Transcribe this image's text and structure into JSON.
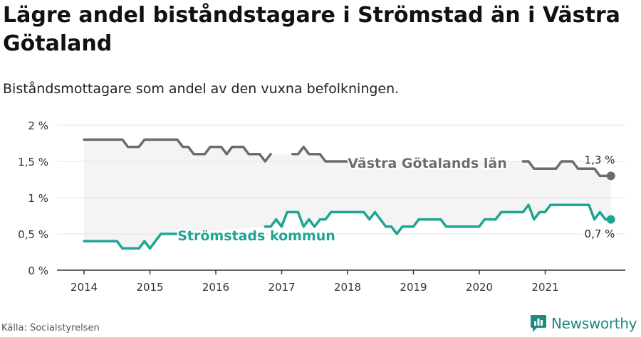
{
  "title": "Lägre andel biståndstagare i Strömstad än i Västra Götaland",
  "subtitle": "Biståndsmottagare som andel av den vuxna befolkningen.",
  "source": "Källa: Socialstyrelsen",
  "brand": "Newsworthy",
  "colors": {
    "vg": "#6b6b70",
    "strom": "#1ea593",
    "band": "#f4f4f5",
    "grid": "#e4e4e4",
    "axis": "#333333",
    "brand": "#1b8a82"
  },
  "chart_data": {
    "type": "line",
    "ylim": [
      0,
      2
    ],
    "y_ticks": [
      0,
      0.5,
      1,
      1.5,
      2
    ],
    "y_tick_labels": [
      "0 %",
      "0,5 %",
      "1 %",
      "1,5 %",
      "2 %"
    ],
    "x_ticks": [
      2014,
      2015,
      2016,
      2017,
      2018,
      2019,
      2020,
      2021
    ],
    "x_tick_labels": [
      "2014",
      "2015",
      "2016",
      "2017",
      "2018",
      "2019",
      "2020",
      "2021"
    ],
    "start": 2014.0,
    "step": 0.0833,
    "series": [
      {
        "name": "Västra Götalands län",
        "key": "vg",
        "end_label": "1,3 %",
        "values": [
          1.8,
          1.8,
          1.8,
          1.8,
          1.8,
          1.8,
          1.8,
          1.8,
          1.7,
          1.7,
          1.7,
          1.8,
          1.8,
          1.8,
          1.8,
          1.8,
          1.8,
          1.8,
          1.7,
          1.7,
          1.6,
          1.6,
          1.6,
          1.7,
          1.7,
          1.7,
          1.6,
          1.7,
          1.7,
          1.7,
          1.6,
          1.6,
          1.6,
          1.5,
          1.6,
          null,
          null,
          null,
          1.6,
          1.6,
          1.7,
          1.6,
          1.6,
          1.6,
          1.5,
          1.5,
          1.5,
          1.5,
          1.5,
          1.5,
          1.5,
          null,
          null,
          null,
          null,
          null,
          null,
          null,
          null,
          null,
          null,
          null,
          null,
          null,
          null,
          null,
          null,
          null,
          null,
          null,
          null,
          null,
          null,
          null,
          null,
          null,
          null,
          null,
          null,
          null,
          1.5,
          1.5,
          1.4,
          1.4,
          1.4,
          1.4,
          1.4,
          1.5,
          1.5,
          1.5,
          1.4,
          1.4,
          1.4,
          1.4,
          1.3,
          1.3,
          1.3
        ]
      },
      {
        "name": "Strömstads kommun",
        "key": "strom",
        "end_label": "0,7 %",
        "values": [
          0.4,
          0.4,
          0.4,
          0.4,
          0.4,
          0.4,
          0.4,
          0.3,
          0.3,
          0.3,
          0.3,
          0.4,
          0.3,
          0.4,
          0.5,
          0.5,
          0.5,
          0.5,
          0.5,
          null,
          null,
          null,
          null,
          null,
          null,
          null,
          null,
          null,
          null,
          null,
          null,
          null,
          null,
          0.6,
          0.6,
          0.7,
          0.6,
          0.8,
          0.8,
          0.8,
          0.6,
          0.7,
          0.6,
          0.7,
          0.7,
          0.8,
          0.8,
          0.8,
          0.8,
          0.8,
          0.8,
          0.8,
          0.7,
          0.8,
          0.7,
          0.6,
          0.6,
          0.5,
          0.6,
          0.6,
          0.6,
          0.7,
          0.7,
          0.7,
          0.7,
          0.7,
          0.6,
          0.6,
          0.6,
          0.6,
          0.6,
          0.6,
          0.6,
          0.7,
          0.7,
          0.7,
          0.8,
          0.8,
          0.8,
          0.8,
          0.8,
          0.9,
          0.7,
          0.8,
          0.8,
          0.9,
          0.9,
          0.9,
          0.9,
          0.9,
          0.9,
          0.9,
          0.9,
          0.7,
          0.8,
          0.7,
          0.7
        ]
      }
    ]
  }
}
